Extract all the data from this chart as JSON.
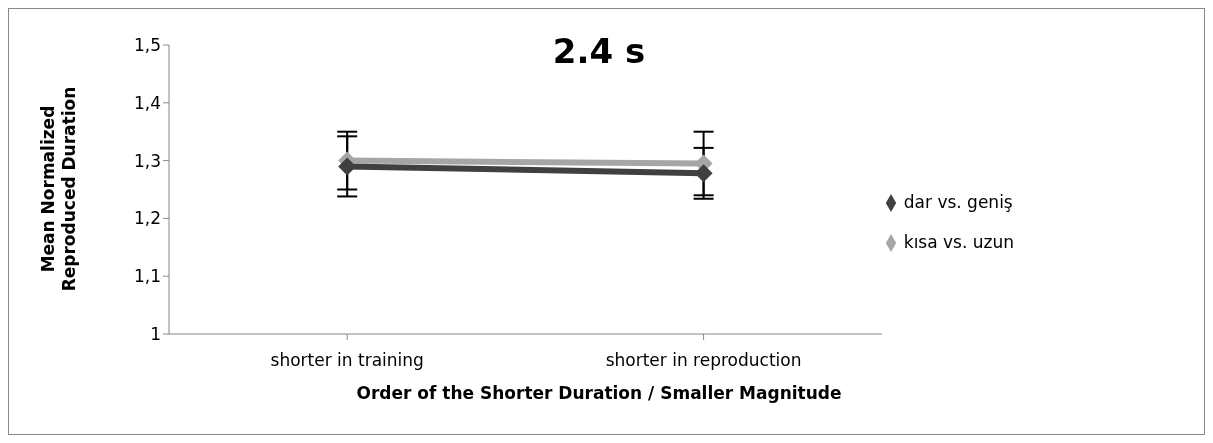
{
  "chart_data": {
    "type": "line",
    "title": "2.4 s",
    "xlabel": "Order of the Shorter Duration / Smaller Magnitude",
    "ylabel": "Mean Normalized\nReproduced Duration",
    "categories": [
      "shorter in training",
      "shorter in reproduction"
    ],
    "series": [
      {
        "name": "kısa vs. uzun",
        "color": "#a6a6a6",
        "values": [
          1.3,
          1.295
        ],
        "errors": [
          0.05,
          0.055
        ]
      },
      {
        "name": "dar vs. geniş",
        "color": "#404040",
        "values": [
          1.29,
          1.278
        ],
        "errors": [
          0.052,
          0.044
        ]
      }
    ],
    "ylim": [
      1,
      1.5
    ],
    "yticks": [
      {
        "value": 1,
        "label": "1"
      },
      {
        "value": 1.1,
        "label": "1,1"
      },
      {
        "value": 1.2,
        "label": "1,2"
      },
      {
        "value": 1.3,
        "label": "1,3"
      },
      {
        "value": 1.4,
        "label": "1,4"
      },
      {
        "value": 1.5,
        "label": "1,5"
      }
    ],
    "grid": false,
    "legend": "right",
    "marker": "diamond"
  }
}
